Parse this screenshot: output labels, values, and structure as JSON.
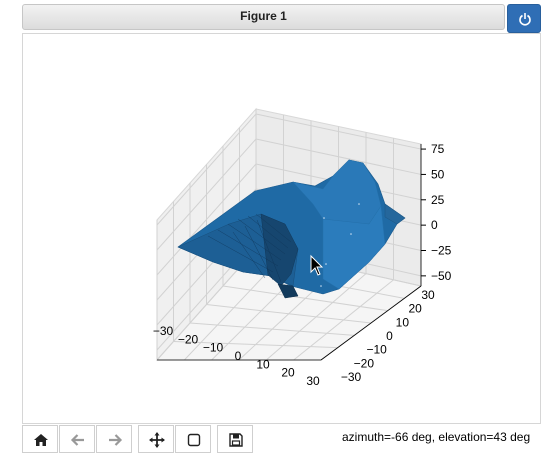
{
  "window": {
    "title": "Figure 1"
  },
  "toolbar": {
    "buttons": [
      {
        "name": "home-button",
        "icon": "home-icon"
      },
      {
        "name": "back-button",
        "icon": "arrow-left-icon"
      },
      {
        "name": "forward-button",
        "icon": "arrow-right-icon"
      },
      {
        "name": "pan-button",
        "icon": "move-icon"
      },
      {
        "name": "zoom-button",
        "icon": "zoom-rect-icon"
      },
      {
        "name": "save-button",
        "icon": "save-icon"
      }
    ]
  },
  "status": {
    "text": "azimuth=-66 deg, elevation=43 deg"
  },
  "chart_data": {
    "type": "surface",
    "x_ticks": [
      "−30",
      "−20",
      "−10",
      "0",
      "10",
      "20",
      "30"
    ],
    "y_ticks": [
      "−30",
      "−20",
      "−10",
      "0",
      "10",
      "20",
      "30"
    ],
    "z_ticks": [
      "75",
      "50",
      "25",
      "0",
      "−25",
      "−50"
    ],
    "xlim": [
      -30,
      30
    ],
    "ylim": [
      -30,
      30
    ],
    "zlim": [
      -60,
      80
    ],
    "view": {
      "azimuth": -66,
      "elevation": 43
    },
    "grid": true,
    "surface_color": "#1f6aa5"
  }
}
